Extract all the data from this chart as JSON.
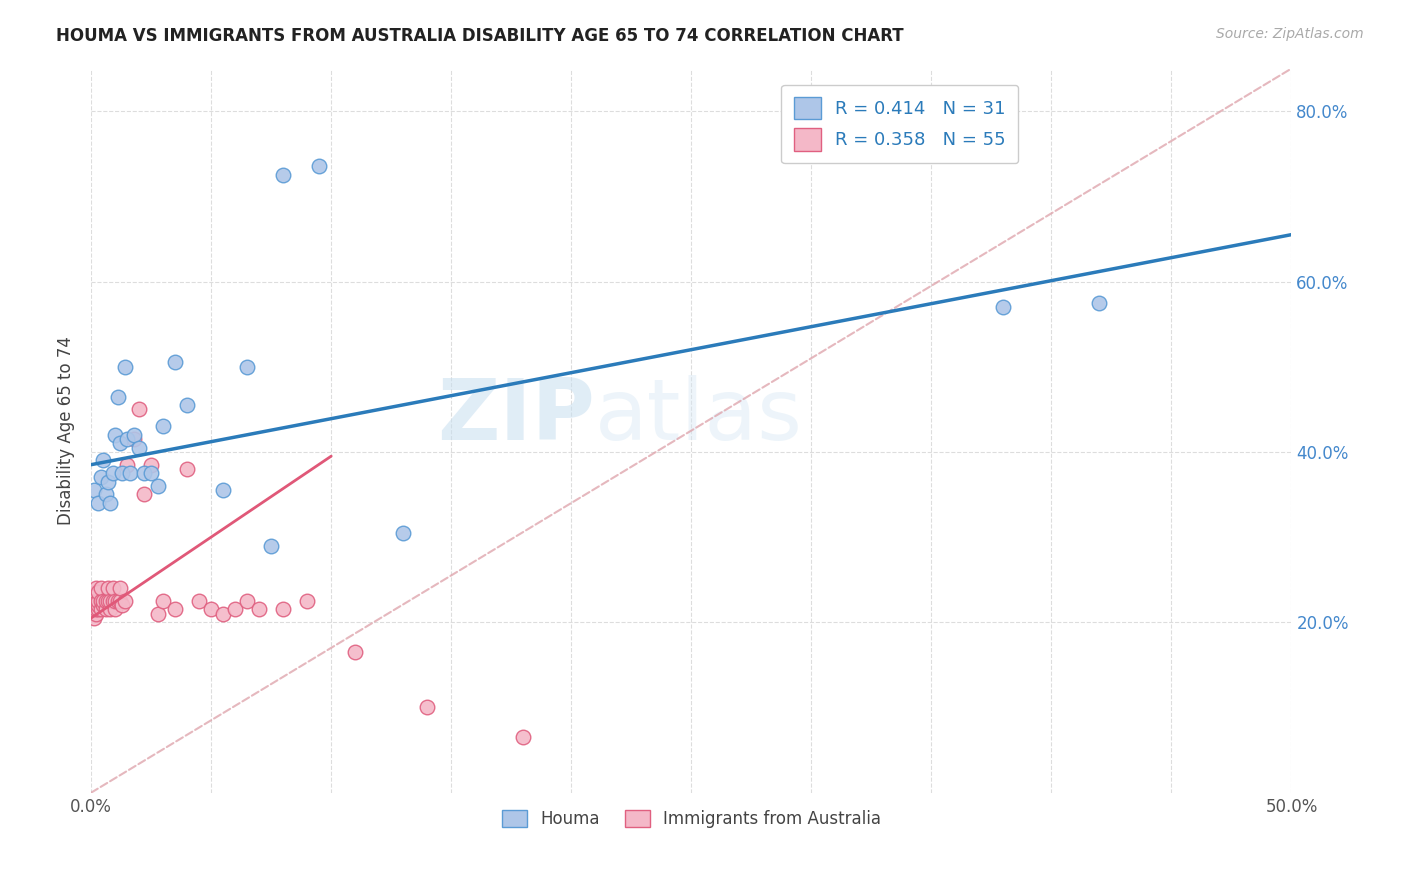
{
  "title": "HOUMA VS IMMIGRANTS FROM AUSTRALIA DISABILITY AGE 65 TO 74 CORRELATION CHART",
  "source": "Source: ZipAtlas.com",
  "ylabel": "Disability Age 65 to 74",
  "xlim": [
    0.0,
    0.5
  ],
  "ylim": [
    0.0,
    0.85
  ],
  "xticks": [
    0.0,
    0.05,
    0.1,
    0.15,
    0.2,
    0.25,
    0.3,
    0.35,
    0.4,
    0.45,
    0.5
  ],
  "xticklabels": [
    "0.0%",
    "",
    "",
    "",
    "",
    "",
    "",
    "",
    "",
    "",
    "50.0%"
  ],
  "yticks": [
    0.2,
    0.4,
    0.6,
    0.8
  ],
  "yticklabels": [
    "20.0%",
    "40.0%",
    "60.0%",
    "80.0%"
  ],
  "legend_labels_top": [
    "R = 0.414   N = 31",
    "R = 0.358   N = 55"
  ],
  "legend_labels_bottom": [
    "Houma",
    "Immigrants from Australia"
  ],
  "houma_color": "#aec6e8",
  "houma_edge_color": "#5b9bd5",
  "immig_color": "#f4b8c8",
  "immig_edge_color": "#e06080",
  "blue_line_color": "#2b7bba",
  "pink_line_color": "#e05878",
  "dashed_line_color": "#dda0a8",
  "watermark_text": "ZIP",
  "watermark_text2": "atlas",
  "blue_line_x": [
    0.0,
    0.5
  ],
  "blue_line_y": [
    0.385,
    0.655
  ],
  "pink_line_x": [
    0.0,
    0.1
  ],
  "pink_line_y": [
    0.205,
    0.395
  ],
  "dashed_line_x": [
    0.0,
    0.5
  ],
  "dashed_line_y": [
    0.0,
    0.85
  ],
  "houma_x": [
    0.001,
    0.003,
    0.004,
    0.005,
    0.006,
    0.007,
    0.008,
    0.009,
    0.01,
    0.011,
    0.012,
    0.013,
    0.014,
    0.015,
    0.016,
    0.018,
    0.02,
    0.022,
    0.025,
    0.028,
    0.03,
    0.035,
    0.04,
    0.055,
    0.065,
    0.075,
    0.08,
    0.095,
    0.13,
    0.38,
    0.42
  ],
  "houma_y": [
    0.355,
    0.34,
    0.37,
    0.39,
    0.35,
    0.365,
    0.34,
    0.375,
    0.42,
    0.465,
    0.41,
    0.375,
    0.5,
    0.415,
    0.375,
    0.42,
    0.405,
    0.375,
    0.375,
    0.36,
    0.43,
    0.505,
    0.455,
    0.355,
    0.5,
    0.29,
    0.725,
    0.735,
    0.305,
    0.57,
    0.575
  ],
  "immig_x": [
    0.001,
    0.001,
    0.001,
    0.001,
    0.001,
    0.002,
    0.002,
    0.002,
    0.002,
    0.002,
    0.002,
    0.003,
    0.003,
    0.003,
    0.003,
    0.004,
    0.004,
    0.004,
    0.005,
    0.005,
    0.006,
    0.006,
    0.007,
    0.007,
    0.008,
    0.008,
    0.009,
    0.009,
    0.01,
    0.01,
    0.011,
    0.012,
    0.012,
    0.013,
    0.014,
    0.015,
    0.018,
    0.02,
    0.022,
    0.025,
    0.028,
    0.03,
    0.035,
    0.04,
    0.045,
    0.05,
    0.055,
    0.06,
    0.065,
    0.07,
    0.08,
    0.09,
    0.11,
    0.14,
    0.18
  ],
  "immig_y": [
    0.205,
    0.215,
    0.22,
    0.225,
    0.23,
    0.21,
    0.215,
    0.22,
    0.225,
    0.235,
    0.24,
    0.215,
    0.22,
    0.225,
    0.235,
    0.215,
    0.225,
    0.24,
    0.22,
    0.225,
    0.215,
    0.225,
    0.225,
    0.24,
    0.215,
    0.225,
    0.225,
    0.24,
    0.215,
    0.225,
    0.225,
    0.225,
    0.24,
    0.22,
    0.225,
    0.385,
    0.415,
    0.45,
    0.35,
    0.385,
    0.21,
    0.225,
    0.215,
    0.38,
    0.225,
    0.215,
    0.21,
    0.215,
    0.225,
    0.215,
    0.215,
    0.225,
    0.165,
    0.1,
    0.065
  ]
}
